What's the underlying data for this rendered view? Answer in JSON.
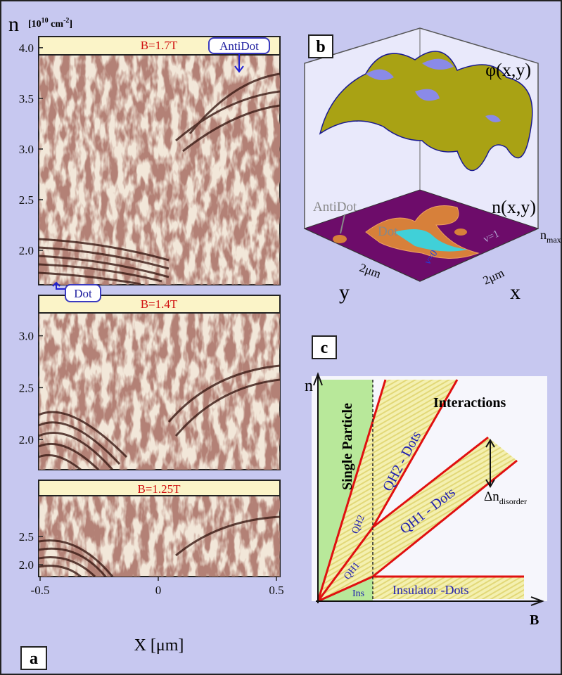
{
  "panel_a": {
    "label": "a",
    "y_title": "n",
    "y_unit": {
      "open": "[10",
      "exp": "10",
      "mid": " cm",
      "exp2": "-2",
      "close": "]"
    },
    "x_title": "X [μm]",
    "xlim": [
      -0.5,
      0.5
    ],
    "xticks": [
      -0.5,
      0,
      0.5
    ],
    "subpanels": [
      {
        "header": "B=1.7T",
        "ylim": [
          1.66,
          4.11
        ],
        "yticks": [
          {
            "value": 4,
            "label": "4.0"
          },
          3.5,
          {
            "value": 3,
            "label": "3.0"
          },
          2.5,
          {
            "value": 2,
            "label": "2.0"
          }
        ]
      },
      {
        "header": "B=1.4T",
        "ylim": [
          1.71,
          3.39
        ],
        "yticks": [
          {
            "value": 3,
            "label": "3.0"
          },
          2.5,
          {
            "value": 2,
            "label": "2.0"
          }
        ]
      },
      {
        "header": "B=1.25T",
        "ylim": [
          1.79,
          3.5
        ],
        "yticks": [
          2.5,
          {
            "value": 2,
            "label": "2.0"
          }
        ]
      }
    ],
    "antidot": "AntiDot",
    "dot": "Dot"
  },
  "panel_b": {
    "label": "b",
    "phi": "φ(x,y)",
    "n_xy": "n(x,y)",
    "antidot": "AntiDot",
    "dot": "Dot",
    "nu1": "ν=1",
    "nu0": "ν=0",
    "n_max": {
      "base": "n",
      "sub": "max"
    },
    "scale_y": "2μm",
    "scale_x": "2μm",
    "axis_y": "y",
    "axis_x": "x"
  },
  "panel_c": {
    "label": "c",
    "axis_y": "n",
    "axis_x": "B",
    "single_particle": "Single Particle",
    "interactions": "Interactions",
    "qh2_dots": "QH2 - Dots",
    "qh1_dots": "QH1  - Dots",
    "insulator_dots": "Insulator -Dots",
    "qh2": "QH2",
    "qh1": "QH1",
    "ins": "Ins",
    "delta_n": {
      "base": "Δn",
      "sub": "disorder"
    }
  }
}
